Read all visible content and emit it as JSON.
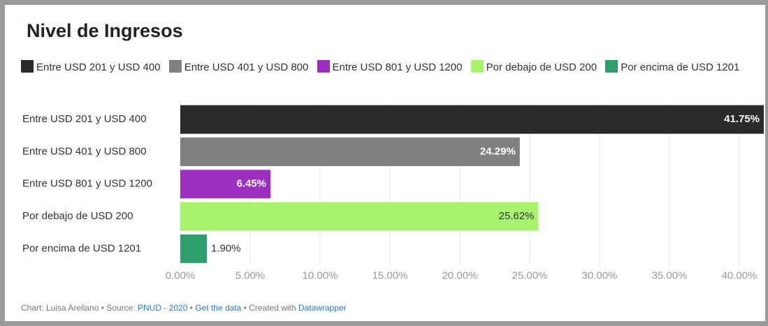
{
  "chart_data": {
    "type": "bar",
    "orientation": "horizontal",
    "title": "Nivel de Ingresos",
    "categories": [
      "Entre USD 201 y USD 400",
      "Entre USD 401 y USD 800",
      "Entre USD 801 y USD 1200",
      "Por debajo de USD 200",
      "Por encima de USD 1201"
    ],
    "values": [
      41.75,
      24.29,
      6.45,
      25.62,
      1.9
    ],
    "value_labels": [
      "41.75%",
      "24.29%",
      "6.45%",
      "25.62%",
      "1.90%"
    ],
    "colors": [
      "#2b2b2b",
      "#808080",
      "#9b30c0",
      "#a8f36c",
      "#2f9e6c"
    ],
    "xlim": [
      0,
      40
    ],
    "xticks": [
      {
        "value": 0,
        "label": "0.00%"
      },
      {
        "value": 5,
        "label": "5.00%"
      },
      {
        "value": 10,
        "label": "10.00%"
      },
      {
        "value": 15,
        "label": "15.00%"
      },
      {
        "value": 20,
        "label": "20.00%"
      },
      {
        "value": 25,
        "label": "25.00%"
      },
      {
        "value": 30,
        "label": "30.00%"
      },
      {
        "value": 35,
        "label": "35.00%"
      },
      {
        "value": 40,
        "label": "40.00%"
      }
    ],
    "grid": true,
    "legend": true
  },
  "footer": {
    "credit": "Chart: Luisa Arellano",
    "separator": "•",
    "source_label": "Source:",
    "source": "PNUD - 2020",
    "get_data": "Get the data",
    "created": "Created with",
    "tool": "Datawrapper"
  }
}
